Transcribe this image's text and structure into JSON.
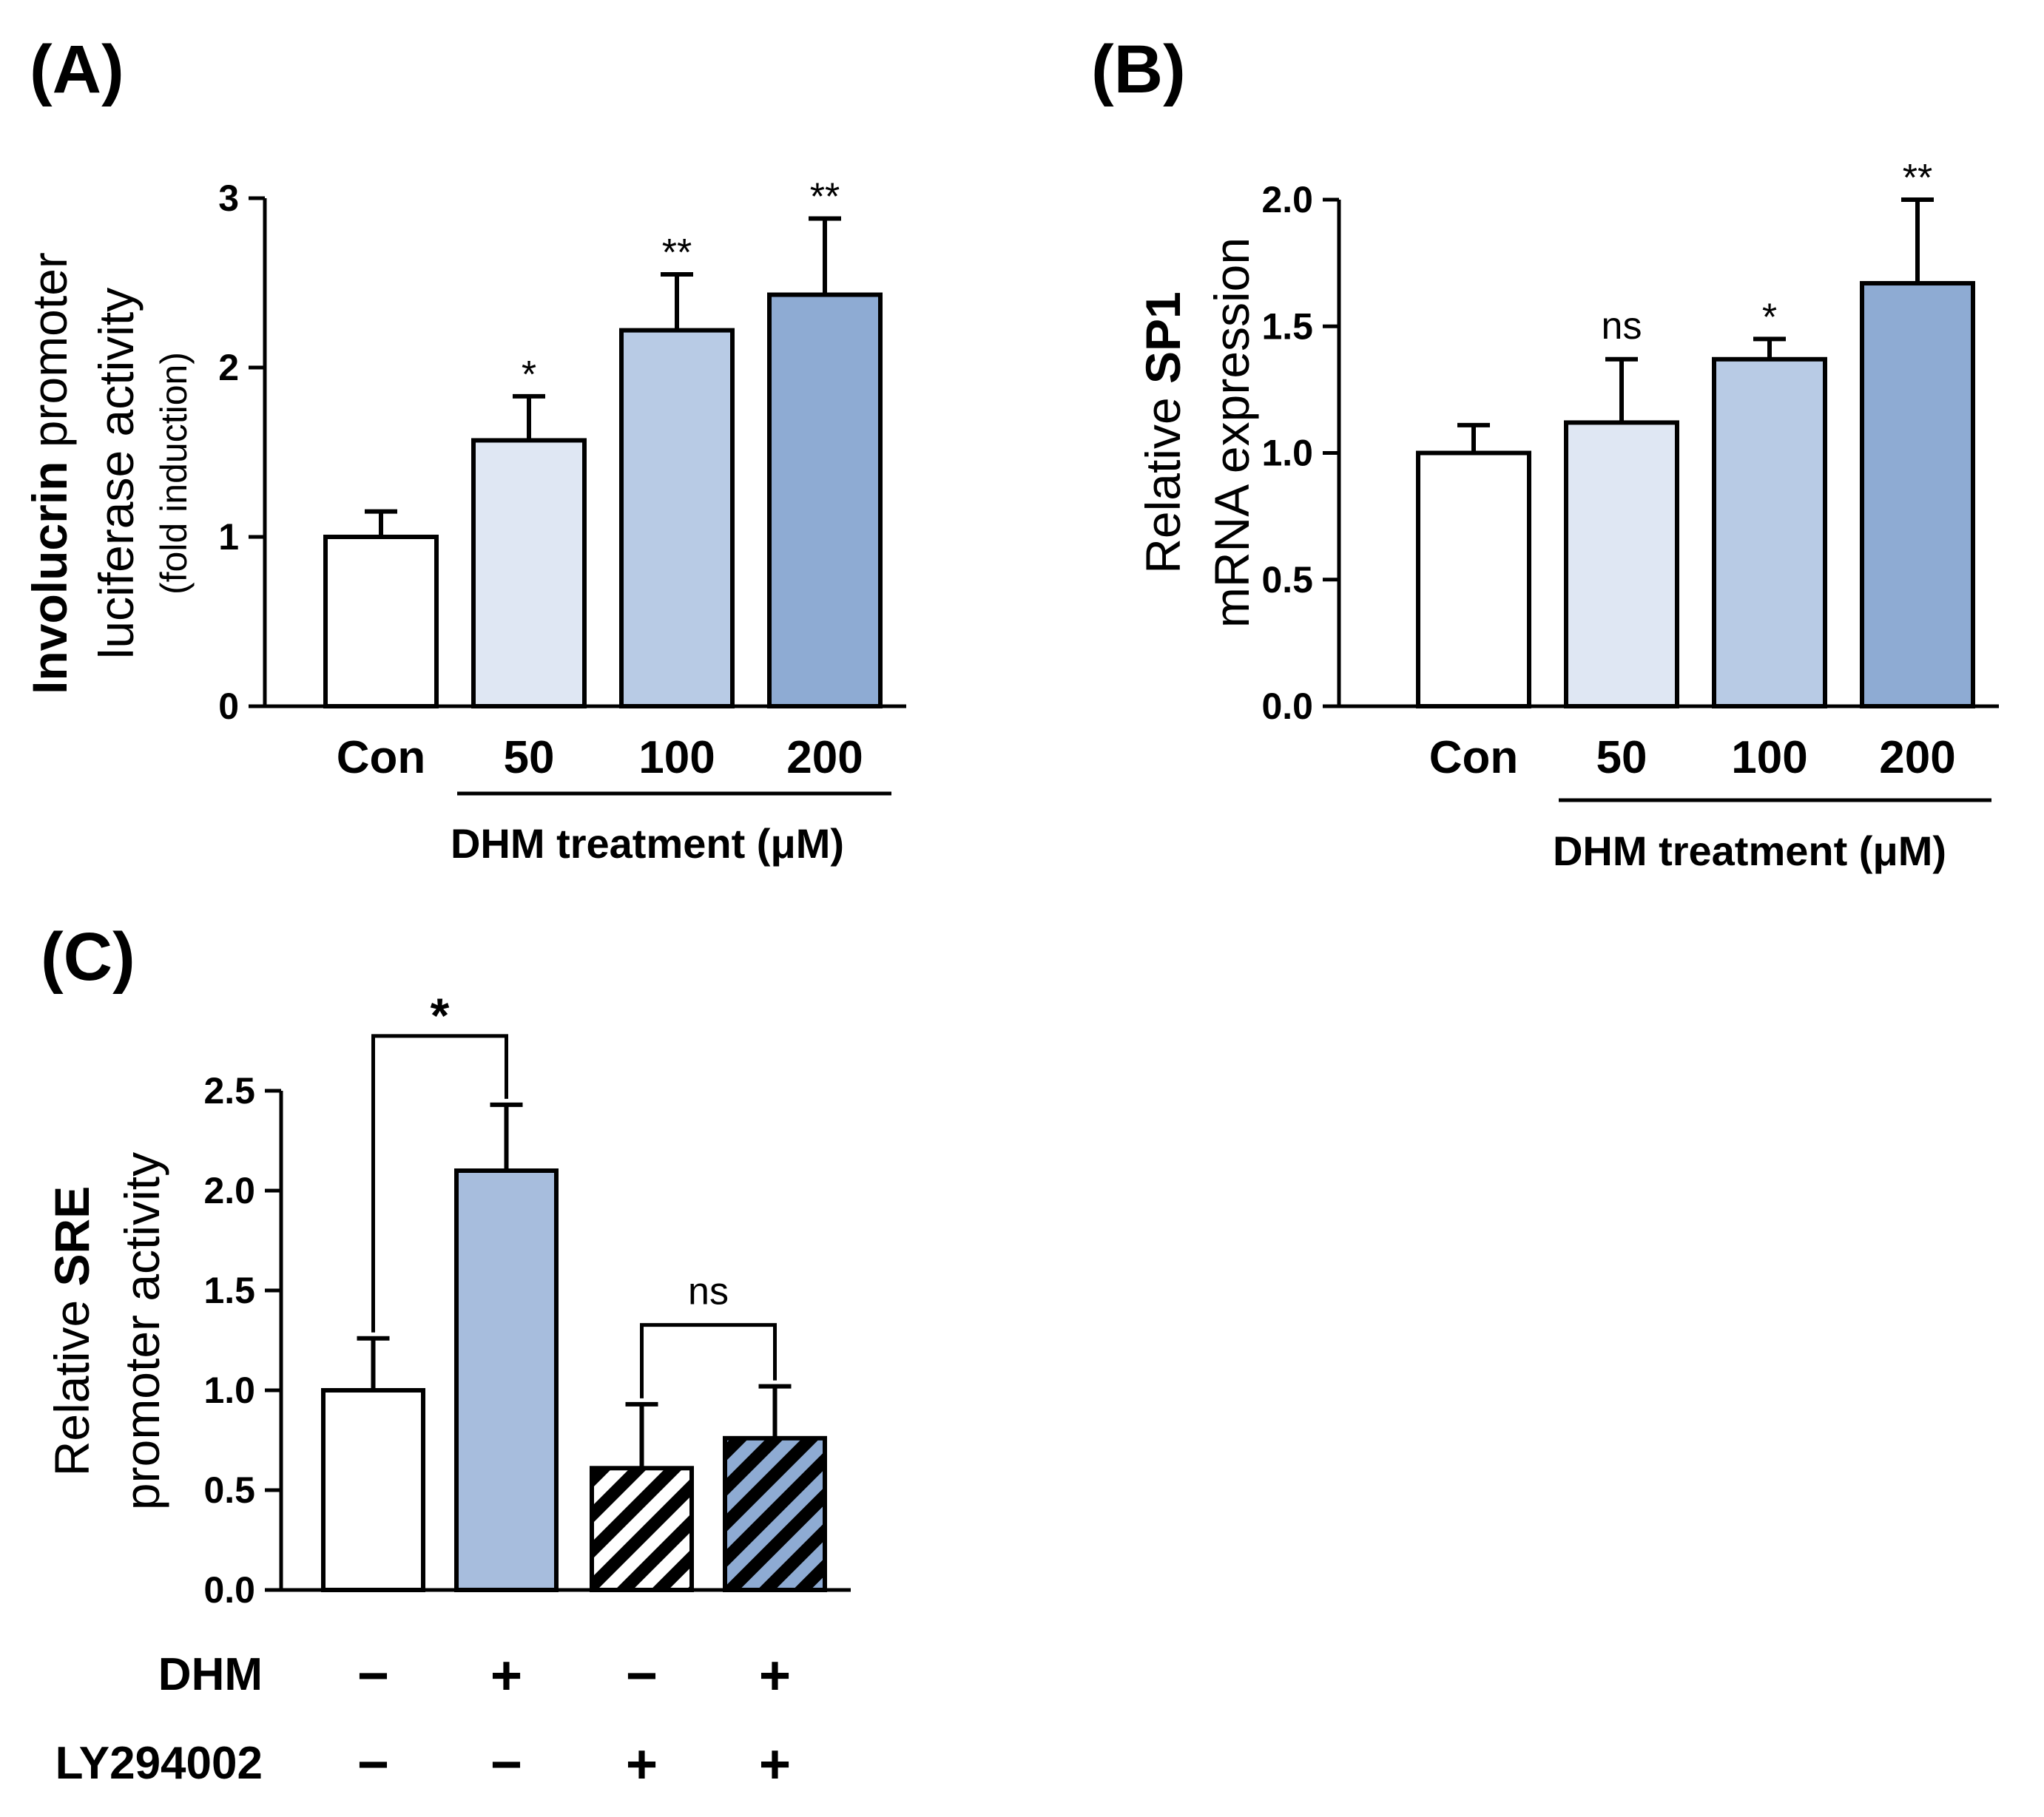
{
  "chart_data": [
    {
      "panel": "(A)",
      "type": "bar",
      "ylabel_bold": "Involucrin",
      "ylabel_rest": " promoter",
      "ylabel_line2": "luciferase activity",
      "ylabel_line3": "(fold induction)",
      "ylim": [
        0,
        3
      ],
      "yticks": [
        "0",
        "1",
        "2",
        "3"
      ],
      "categories": [
        "Con",
        "50",
        "100",
        "200"
      ],
      "values": [
        1.0,
        1.57,
        2.22,
        2.43
      ],
      "errors": [
        0.15,
        0.26,
        0.33,
        0.45
      ],
      "significance": [
        "",
        "*",
        "**",
        "**"
      ],
      "colors": [
        "#ffffff",
        "#dfe7f3",
        "#b8cbe5",
        "#8eabd3"
      ],
      "group_label": "DHM treatment (μM)"
    },
    {
      "panel": "(B)",
      "type": "bar",
      "ylabel_pre": "Relative ",
      "ylabel_bold": "SP1",
      "ylabel_line2": "mRNA expression",
      "ylim": [
        0,
        2
      ],
      "yticks": [
        "0.0",
        "0.5",
        "1.0",
        "1.5",
        "2.0"
      ],
      "categories": [
        "Con",
        "50",
        "100",
        "200"
      ],
      "values": [
        1.0,
        1.12,
        1.37,
        1.67
      ],
      "errors": [
        0.11,
        0.25,
        0.08,
        0.33
      ],
      "significance": [
        "",
        "ns",
        "*",
        "**"
      ],
      "colors": [
        "#ffffff",
        "#dfe7f3",
        "#b8cbe5",
        "#8eabd3"
      ],
      "group_label": "DHM treatment (μM)"
    },
    {
      "panel": "(C)",
      "type": "bar",
      "ylabel_pre": "Relative ",
      "ylabel_bold": "SRE",
      "ylabel_line2": "promoter activity",
      "ylim": [
        0,
        2.5
      ],
      "yticks": [
        "0.0",
        "0.5",
        "1.0",
        "1.5",
        "2.0",
        "2.5"
      ],
      "values": [
        1.0,
        2.1,
        0.61,
        0.76
      ],
      "errors": [
        0.26,
        0.33,
        0.32,
        0.26
      ],
      "colors": [
        "#ffffff",
        "#a7bddd",
        "#ffffff",
        "#8eabd3"
      ],
      "hatched": [
        false,
        false,
        true,
        true
      ],
      "comparisons": [
        {
          "from": 0,
          "to": 1,
          "label": "*"
        },
        {
          "from": 2,
          "to": 3,
          "label": "ns"
        }
      ],
      "rows": [
        {
          "label": "DHM",
          "signs": [
            "−",
            "+",
            "−",
            "+"
          ]
        },
        {
          "label": "LY294002",
          "signs": [
            "−",
            "−",
            "+",
            "+"
          ]
        }
      ]
    }
  ]
}
